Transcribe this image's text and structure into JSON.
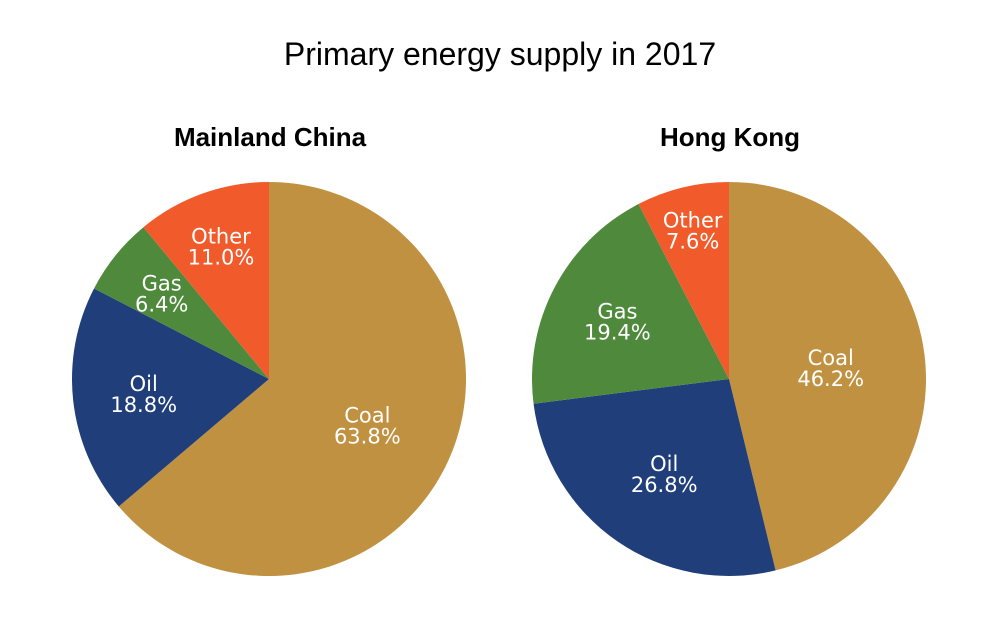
{
  "chart_data": {
    "type": "pie",
    "title": "Primary energy supply in 2017",
    "colors": {
      "Coal": "#C09140",
      "Oil": "#1F3E7A",
      "Gas": "#4F8A3C",
      "Other": "#F15A2B"
    },
    "label_color": "#ffffff",
    "charts": [
      {
        "subtitle": "Mainland China",
        "slices": [
          {
            "label": "Coal",
            "value": 63.8,
            "value_label": "63.8%"
          },
          {
            "label": "Oil",
            "value": 18.8,
            "value_label": "18.8%"
          },
          {
            "label": "Gas",
            "value": 6.4,
            "value_label": "6.4%"
          },
          {
            "label": "Other",
            "value": 11.0,
            "value_label": "11.0%"
          }
        ]
      },
      {
        "subtitle": "Hong Kong",
        "slices": [
          {
            "label": "Coal",
            "value": 46.2,
            "value_label": "46.2%"
          },
          {
            "label": "Oil",
            "value": 26.8,
            "value_label": "26.8%"
          },
          {
            "label": "Gas",
            "value": 19.4,
            "value_label": "19.4%"
          },
          {
            "label": "Other",
            "value": 7.6,
            "value_label": "7.6%"
          }
        ]
      }
    ]
  }
}
